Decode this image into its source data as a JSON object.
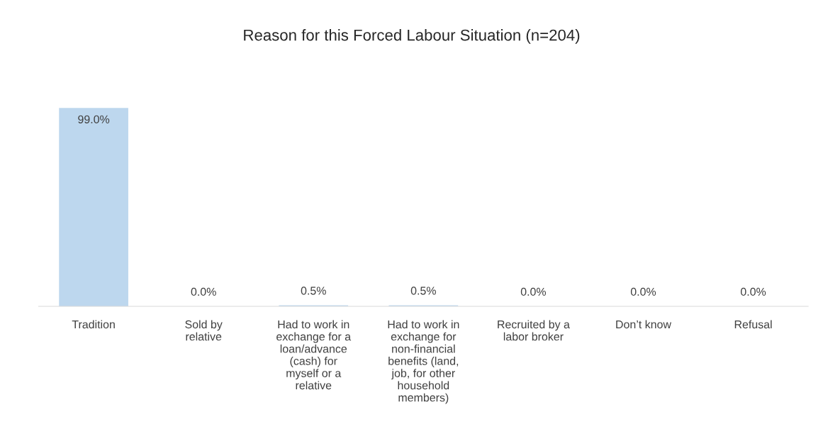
{
  "chart_data": {
    "type": "bar",
    "title": "Reason for this Forced Labour Situation (n=204)",
    "categories": [
      "Tradition",
      "Sold by relative",
      "Had to work in exchange for a loan/advance (cash) for myself or a relative",
      "Had to work in exchange for non-financial benefits (land, job, for other household members)",
      "Recruited by a labor broker",
      "Don’t know",
      "Refusal"
    ],
    "values": [
      99.0,
      0.0,
      0.5,
      0.5,
      0.0,
      0.0,
      0.0
    ],
    "value_labels": [
      "99.0%",
      "0.0%",
      "0.5%",
      "0.5%",
      "0.0%",
      "0.0%",
      "0.0%"
    ],
    "color": "#bdd7ee",
    "grid": false,
    "legend": false
  }
}
